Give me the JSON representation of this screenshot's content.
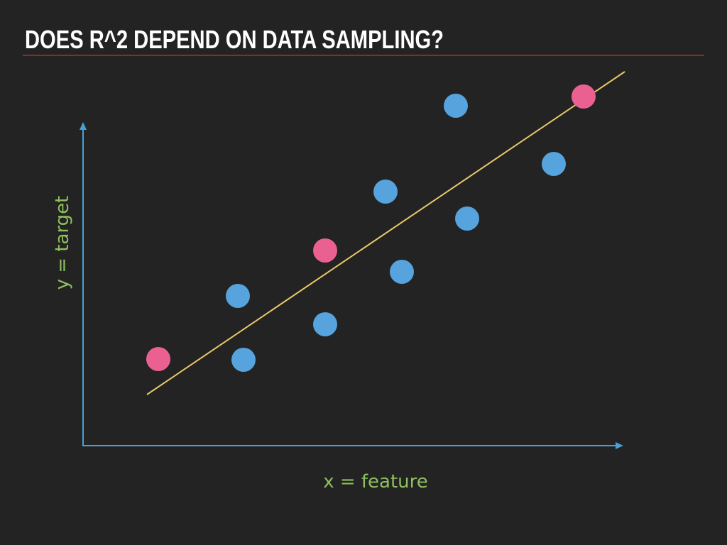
{
  "header": {
    "title": "DOES R^2 DEPEND ON DATA SAMPLING?"
  },
  "plot": {
    "x_label": "x = feature",
    "y_label": "y = target"
  }
}
